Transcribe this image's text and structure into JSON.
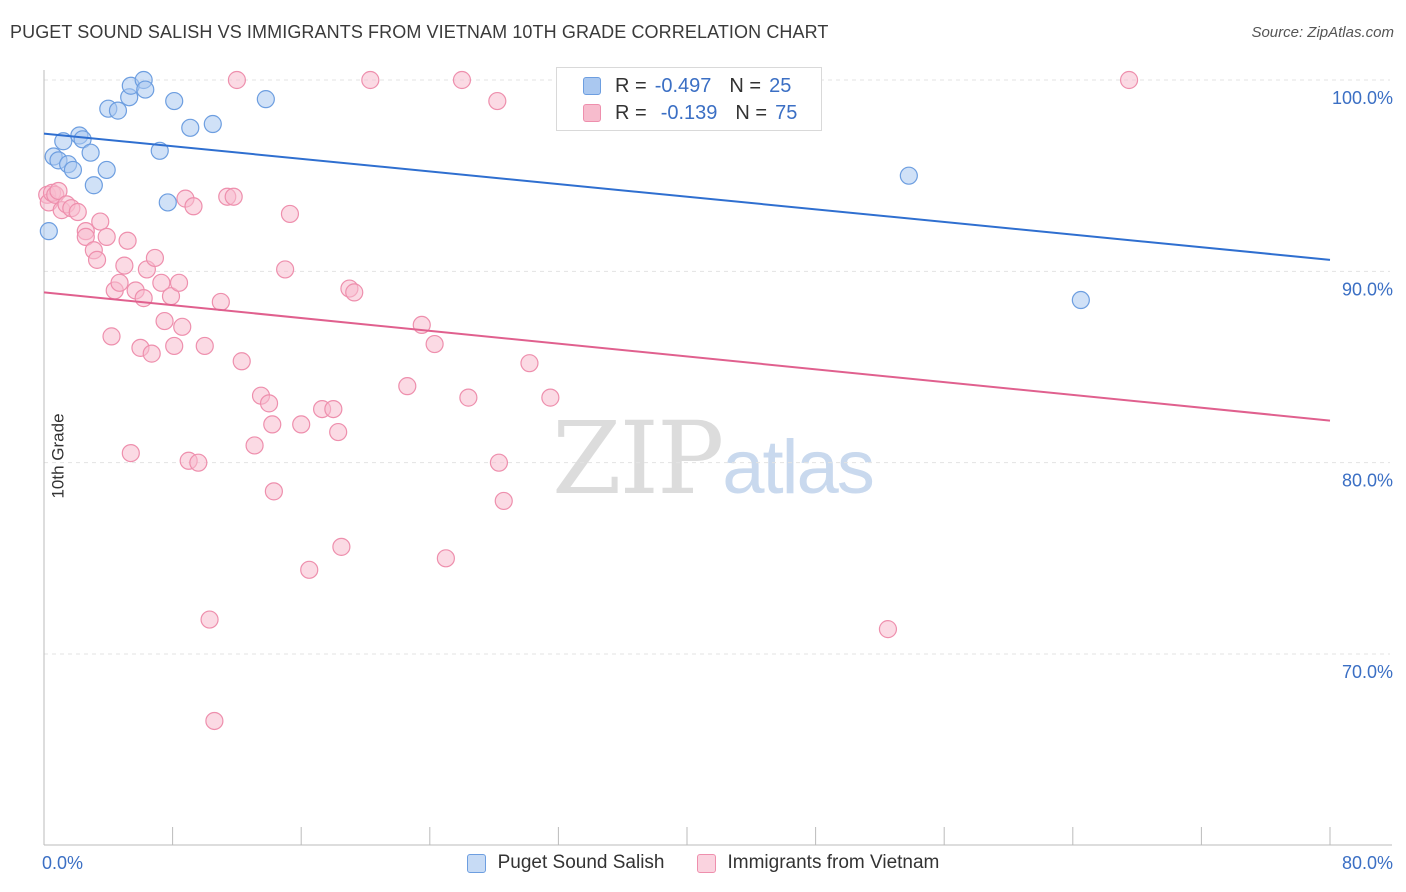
{
  "title": "PUGET SOUND SALISH VS IMMIGRANTS FROM VIETNAM 10TH GRADE CORRELATION CHART",
  "source": "Source: ZipAtlas.com",
  "watermark": {
    "zip": "ZIP",
    "atlas": "atlas"
  },
  "legend": {
    "series1": {
      "r_label": "R =",
      "r_value": "-0.497",
      "n_label": "N =",
      "n_value": "25"
    },
    "series2": {
      "r_label": "R =",
      "r_value": "-0.139",
      "n_label": "N =",
      "n_value": "75"
    }
  },
  "colors": {
    "blue_fill": "#aac8f0",
    "blue_stroke": "#6d9ee0",
    "blue_line": "#2f6fd0",
    "pink_fill": "#f7bccd",
    "pink_stroke": "#ee8fad",
    "pink_line": "#e0608e",
    "axis_label": "#3b6fc4",
    "grid": "#e3e3e3"
  },
  "chart_data": {
    "type": "scatter",
    "title": "PUGET SOUND SALISH VS IMMIGRANTS FROM VIETNAM 10TH GRADE CORRELATION CHART",
    "xlabel": "",
    "ylabel": "10th Grade",
    "xlim": [
      0,
      80
    ],
    "ylim": [
      60,
      100.5
    ],
    "x_tick_labels": [
      "0.0%",
      "80.0%"
    ],
    "y_tick_labels": [
      "100.0%",
      "90.0%",
      "80.0%",
      "70.0%"
    ],
    "y_ticks": [
      100,
      90,
      80,
      70
    ],
    "grid": true,
    "legend_position": "top-center",
    "series": [
      {
        "name": "Puget Sound Salish",
        "color": "#aac8f0",
        "trend": {
          "x": [
            0,
            80
          ],
          "y": [
            97.2,
            90.6
          ]
        },
        "points": [
          {
            "x": 0.3,
            "y": 92.1
          },
          {
            "x": 0.6,
            "y": 96.0
          },
          {
            "x": 0.9,
            "y": 95.8
          },
          {
            "x": 1.2,
            "y": 96.8
          },
          {
            "x": 1.5,
            "y": 95.6
          },
          {
            "x": 1.8,
            "y": 95.3
          },
          {
            "x": 2.2,
            "y": 97.1
          },
          {
            "x": 2.4,
            "y": 96.9
          },
          {
            "x": 2.9,
            "y": 96.2
          },
          {
            "x": 3.1,
            "y": 94.5
          },
          {
            "x": 3.9,
            "y": 95.3
          },
          {
            "x": 4.0,
            "y": 98.5
          },
          {
            "x": 4.6,
            "y": 98.4
          },
          {
            "x": 5.3,
            "y": 99.1
          },
          {
            "x": 5.4,
            "y": 99.7
          },
          {
            "x": 6.2,
            "y": 100.0
          },
          {
            "x": 6.3,
            "y": 99.5
          },
          {
            "x": 7.2,
            "y": 96.3
          },
          {
            "x": 7.7,
            "y": 93.6
          },
          {
            "x": 8.1,
            "y": 98.9
          },
          {
            "x": 9.1,
            "y": 97.5
          },
          {
            "x": 10.5,
            "y": 97.7
          },
          {
            "x": 13.8,
            "y": 99.0
          },
          {
            "x": 53.8,
            "y": 95.0
          },
          {
            "x": 64.5,
            "y": 88.5
          }
        ]
      },
      {
        "name": "Immigrants from Vietnam",
        "color": "#f7bccd",
        "trend": {
          "x": [
            0,
            80
          ],
          "y": [
            88.9,
            82.2
          ]
        },
        "points": [
          {
            "x": 0.2,
            "y": 94.0
          },
          {
            "x": 0.3,
            "y": 93.6
          },
          {
            "x": 0.5,
            "y": 94.1
          },
          {
            "x": 0.7,
            "y": 94.0
          },
          {
            "x": 0.9,
            "y": 94.2
          },
          {
            "x": 1.1,
            "y": 93.2
          },
          {
            "x": 1.4,
            "y": 93.5
          },
          {
            "x": 1.7,
            "y": 93.3
          },
          {
            "x": 2.1,
            "y": 93.1
          },
          {
            "x": 2.6,
            "y": 92.1
          },
          {
            "x": 2.6,
            "y": 91.8
          },
          {
            "x": 3.1,
            "y": 91.1
          },
          {
            "x": 3.3,
            "y": 90.6
          },
          {
            "x": 3.5,
            "y": 92.6
          },
          {
            "x": 3.9,
            "y": 91.8
          },
          {
            "x": 4.2,
            "y": 86.6
          },
          {
            "x": 4.4,
            "y": 89.0
          },
          {
            "x": 4.7,
            "y": 89.4
          },
          {
            "x": 5.0,
            "y": 90.3
          },
          {
            "x": 5.2,
            "y": 91.6
          },
          {
            "x": 5.7,
            "y": 89.0
          },
          {
            "x": 6.0,
            "y": 86.0
          },
          {
            "x": 6.2,
            "y": 88.6
          },
          {
            "x": 6.4,
            "y": 90.1
          },
          {
            "x": 6.7,
            "y": 85.7
          },
          {
            "x": 6.9,
            "y": 90.7
          },
          {
            "x": 7.3,
            "y": 89.4
          },
          {
            "x": 7.5,
            "y": 87.4
          },
          {
            "x": 7.9,
            "y": 88.7
          },
          {
            "x": 8.1,
            "y": 86.1
          },
          {
            "x": 8.4,
            "y": 89.4
          },
          {
            "x": 8.6,
            "y": 87.1
          },
          {
            "x": 8.8,
            "y": 93.8
          },
          {
            "x": 9.3,
            "y": 93.4
          },
          {
            "x": 10.0,
            "y": 86.1
          },
          {
            "x": 11.0,
            "y": 88.4
          },
          {
            "x": 11.4,
            "y": 93.9
          },
          {
            "x": 11.8,
            "y": 93.9
          },
          {
            "x": 12.0,
            "y": 100.0
          },
          {
            "x": 12.3,
            "y": 85.3
          },
          {
            "x": 13.1,
            "y": 80.9
          },
          {
            "x": 13.5,
            "y": 83.5
          },
          {
            "x": 14.0,
            "y": 83.1
          },
          {
            "x": 14.2,
            "y": 82.0
          },
          {
            "x": 14.3,
            "y": 78.5
          },
          {
            "x": 15.0,
            "y": 90.1
          },
          {
            "x": 15.3,
            "y": 93.0
          },
          {
            "x": 16.0,
            "y": 82.0
          },
          {
            "x": 16.5,
            "y": 74.4
          },
          {
            "x": 17.3,
            "y": 82.8
          },
          {
            "x": 18.0,
            "y": 82.8
          },
          {
            "x": 18.3,
            "y": 81.6
          },
          {
            "x": 18.5,
            "y": 75.6
          },
          {
            "x": 19.0,
            "y": 89.1
          },
          {
            "x": 19.3,
            "y": 88.9
          },
          {
            "x": 20.3,
            "y": 100.0
          },
          {
            "x": 22.6,
            "y": 84.0
          },
          {
            "x": 23.5,
            "y": 87.2
          },
          {
            "x": 24.3,
            "y": 86.2
          },
          {
            "x": 25.0,
            "y": 75.0
          },
          {
            "x": 26.0,
            "y": 100.0
          },
          {
            "x": 26.4,
            "y": 83.4
          },
          {
            "x": 28.2,
            "y": 98.9
          },
          {
            "x": 28.3,
            "y": 80.0
          },
          {
            "x": 28.6,
            "y": 78.0
          },
          {
            "x": 30.2,
            "y": 85.2
          },
          {
            "x": 31.5,
            "y": 83.4
          },
          {
            "x": 9.0,
            "y": 80.1
          },
          {
            "x": 9.6,
            "y": 80.0
          },
          {
            "x": 10.3,
            "y": 71.8
          },
          {
            "x": 10.6,
            "y": 66.5
          },
          {
            "x": 5.4,
            "y": 80.5
          },
          {
            "x": 52.5,
            "y": 71.3
          },
          {
            "x": 67.5,
            "y": 100.0
          },
          {
            "x": 43.5,
            "y": 100.0
          }
        ]
      }
    ]
  }
}
